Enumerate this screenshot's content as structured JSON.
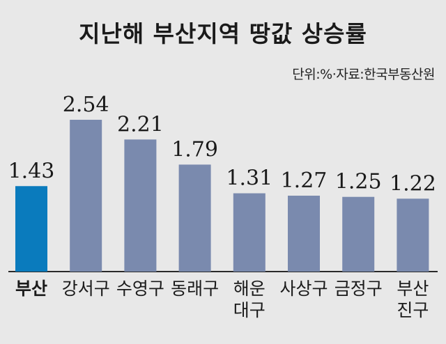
{
  "header": {
    "title": "지난해 부산지역 땅값 상승률",
    "source": "단위:%·자료:한국부동산원"
  },
  "colors": {
    "highlight": "#0a7bbd",
    "bar": "#7a8aae",
    "background": "#e8e8e8"
  },
  "chart_data": {
    "type": "bar",
    "title": "지난해 부산지역 땅값 상승률",
    "unit": "%",
    "categories": [
      "부산",
      "강서구",
      "수영구",
      "동래구",
      "해운대구",
      "사상구",
      "금정구",
      "부산진구"
    ],
    "category_display": [
      [
        "부산"
      ],
      [
        "강서구"
      ],
      [
        "수영구"
      ],
      [
        "동래구"
      ],
      [
        "해운",
        "대구"
      ],
      [
        "사상구"
      ],
      [
        "금정구"
      ],
      [
        "부산",
        "진구"
      ]
    ],
    "values": [
      1.43,
      2.54,
      2.21,
      1.79,
      1.31,
      1.27,
      1.25,
      1.22
    ],
    "value_labels": [
      "1.43",
      "2.54",
      "2.21",
      "1.79",
      "1.31",
      "1.27",
      "1.25",
      "1.22"
    ],
    "highlight_index": 0,
    "ylim": [
      0,
      2.54
    ],
    "grid": false
  }
}
